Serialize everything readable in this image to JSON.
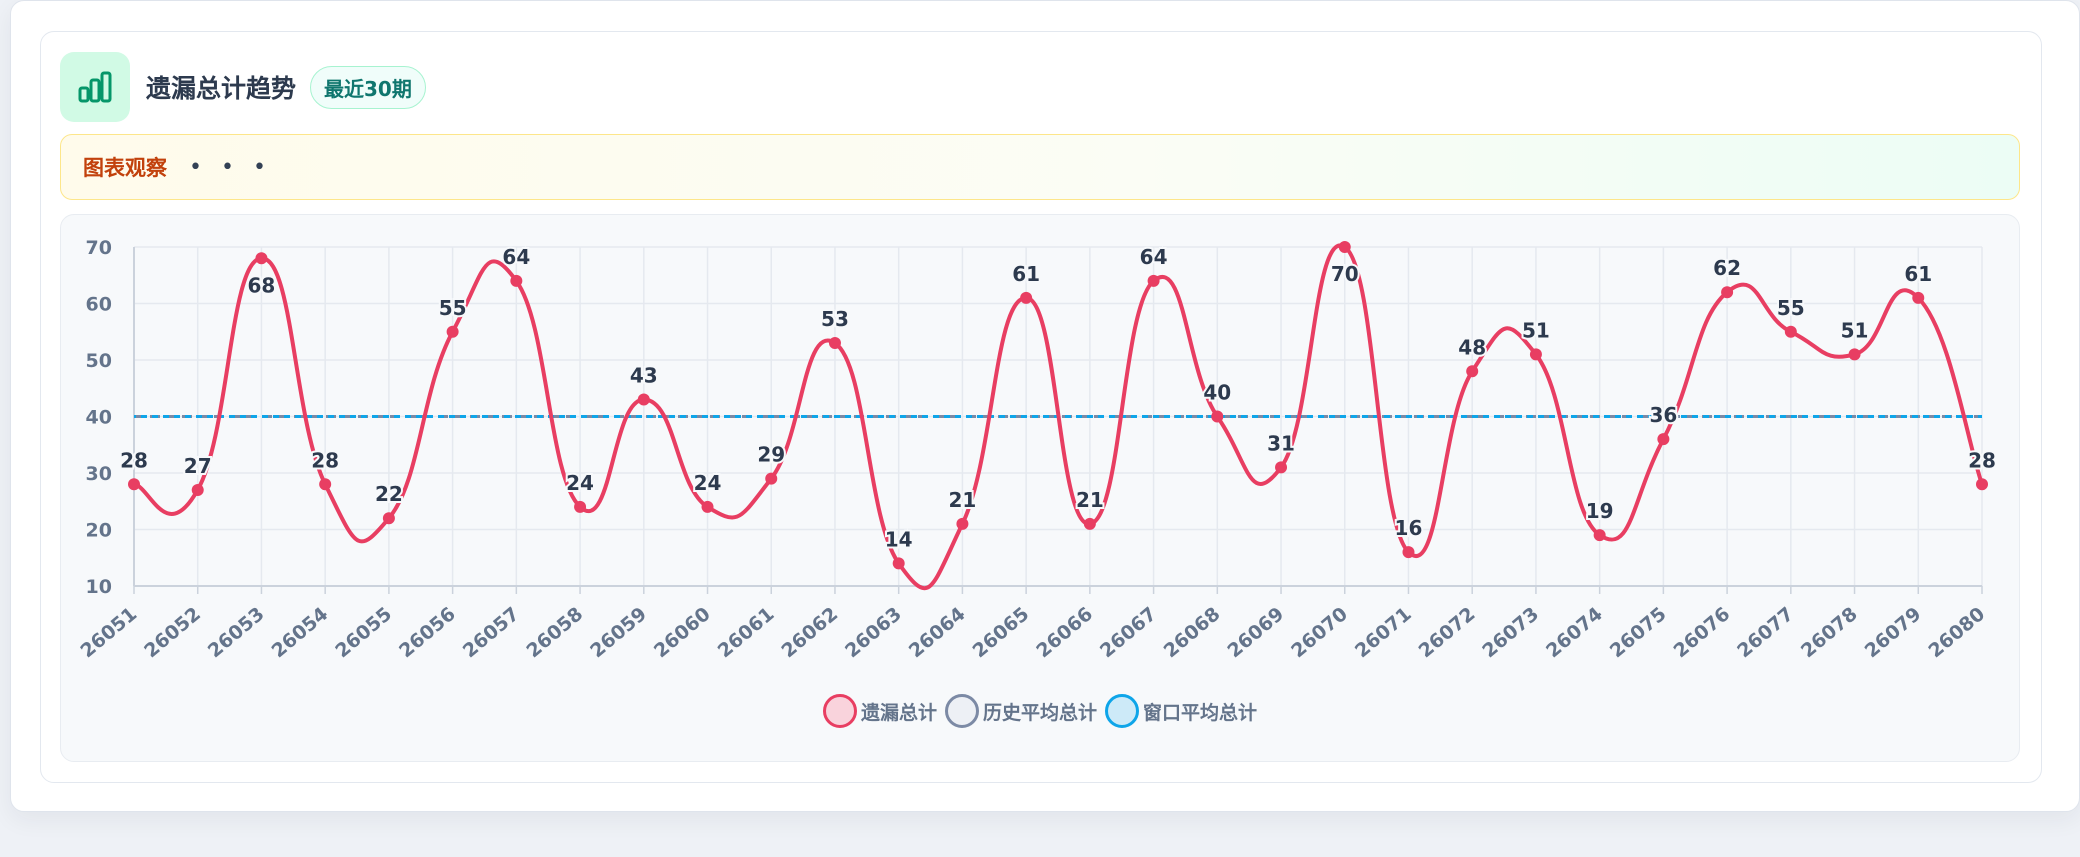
{
  "header": {
    "title": "遗漏总计趋势",
    "badge": "最近30期",
    "icon": "bar-chart-icon"
  },
  "notice": {
    "label": "图表观察",
    "more": "• • •"
  },
  "colors": {
    "accent_green": "#059669",
    "series_main": "#e83e62",
    "series_history": "#94a3b8",
    "series_window": "#0ea5e9"
  },
  "legend": [
    {
      "label": "遗漏总计",
      "fill": "#f9d3dc",
      "stroke": "#e83e62"
    },
    {
      "label": "历史平均总计",
      "fill": "#edf0f5",
      "stroke": "#7c8aa5"
    },
    {
      "label": "窗口平均总计",
      "fill": "#cdeaf8",
      "stroke": "#0ea5e9"
    }
  ],
  "chart_data": {
    "type": "line",
    "title": "",
    "xlabel": "",
    "ylabel": "",
    "ylim": [
      10,
      70
    ],
    "yticks": [
      10,
      20,
      30,
      40,
      50,
      60,
      70
    ],
    "grid": true,
    "legend_position": "bottom-center",
    "categories": [
      "26051",
      "26052",
      "26053",
      "26054",
      "26055",
      "26056",
      "26057",
      "26058",
      "26059",
      "26060",
      "26061",
      "26062",
      "26063",
      "26064",
      "26065",
      "26066",
      "26067",
      "26068",
      "26069",
      "26070",
      "26071",
      "26072",
      "26073",
      "26074",
      "26075",
      "26076",
      "26077",
      "26078",
      "26079",
      "26080"
    ],
    "series": [
      {
        "name": "遗漏总计",
        "values": [
          28,
          27,
          68,
          28,
          22,
          55,
          64,
          24,
          43,
          24,
          29,
          53,
          14,
          21,
          61,
          21,
          64,
          40,
          31,
          70,
          16,
          48,
          51,
          19,
          36,
          62,
          55,
          51,
          61,
          28
        ],
        "data_labels": true
      },
      {
        "name": "历史平均总计",
        "values": [
          40,
          40,
          40,
          40,
          40,
          40,
          40,
          40,
          40,
          40,
          40,
          40,
          40,
          40,
          40,
          40,
          40,
          40,
          40,
          40,
          40,
          40,
          40,
          40,
          40,
          40,
          40,
          40,
          40,
          40
        ]
      },
      {
        "name": "窗口平均总计",
        "values": [
          40,
          40,
          40,
          40,
          40,
          40,
          40,
          40,
          40,
          40,
          40,
          40,
          40,
          40,
          40,
          40,
          40,
          40,
          40,
          40,
          40,
          40,
          40,
          40,
          40,
          40,
          40,
          40,
          40,
          40
        ]
      }
    ]
  }
}
